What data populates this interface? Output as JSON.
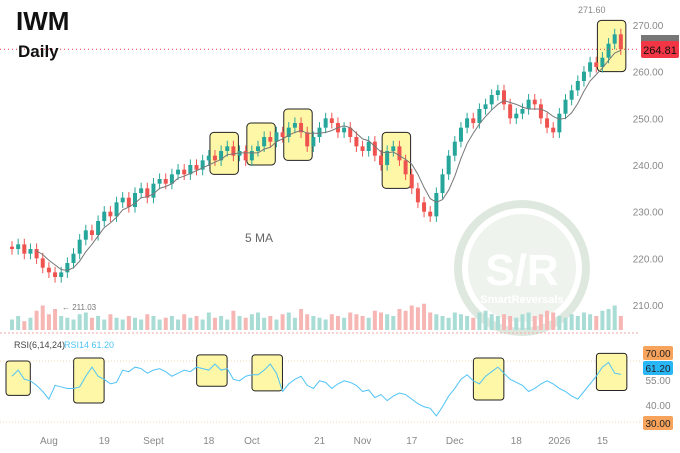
{
  "header": {
    "ticker": "IWM",
    "interval": "Daily"
  },
  "chart_data": [
    {
      "type": "candlestick",
      "title": "IWM Daily",
      "ylim": [
        205,
        275
      ],
      "y_ticks": [
        210,
        220,
        230,
        240,
        250,
        260,
        270
      ],
      "last_price": "264.81",
      "high_label": "271.60",
      "low_label": "211.03",
      "ma_label": "5 MA",
      "closes": [
        222,
        223,
        221,
        222,
        220,
        218,
        217,
        216,
        217,
        219,
        221,
        224,
        226,
        225,
        228,
        230,
        229,
        232,
        233,
        231,
        234,
        235,
        233,
        236,
        237,
        236,
        238,
        239,
        238,
        240,
        239,
        241,
        242,
        241,
        243,
        244,
        242,
        243,
        241,
        243,
        244,
        246,
        245,
        247,
        246,
        248,
        249,
        247,
        244,
        246,
        248,
        250,
        249,
        247,
        248,
        246,
        244,
        243,
        245,
        242,
        240,
        243,
        244,
        241,
        238,
        235,
        232,
        230,
        229,
        234,
        238,
        242,
        245,
        248,
        250,
        249,
        252,
        253,
        255,
        256,
        253,
        250,
        251,
        252,
        254,
        253,
        250,
        248,
        247,
        251,
        254,
        256,
        258,
        260,
        262,
        261,
        263,
        266,
        268,
        264.81
      ],
      "volume": [
        30,
        40,
        25,
        35,
        55,
        70,
        45,
        60,
        40,
        35,
        30,
        45,
        50,
        35,
        40,
        30,
        45,
        35,
        30,
        40,
        35,
        30,
        45,
        40,
        30,
        35,
        40,
        30,
        45,
        35,
        40,
        30,
        50,
        35,
        40,
        30,
        55,
        40,
        35,
        45,
        50,
        35,
        40,
        30,
        45,
        50,
        35,
        60,
        45,
        40,
        35,
        30,
        45,
        40,
        35,
        50,
        45,
        40,
        35,
        55,
        50,
        45,
        40,
        60,
        55,
        70,
        65,
        75,
        50,
        45,
        40,
        35,
        50,
        45,
        40,
        35,
        50,
        55,
        45,
        40,
        45,
        40,
        35,
        45,
        50,
        40,
        45,
        55,
        50,
        40,
        35,
        45,
        40,
        50,
        45,
        40,
        55,
        60,
        70,
        40
      ],
      "highlights": [
        [
          33,
          36
        ],
        [
          39,
          42
        ],
        [
          45,
          48
        ],
        [
          61,
          64
        ],
        [
          96,
          99
        ]
      ]
    },
    {
      "type": "line",
      "title": "RSI(6,14,24)",
      "series_label": "RSI14 61.20",
      "ylim": [
        28,
        75
      ],
      "levels": [
        "70.00",
        "30.00"
      ],
      "y_ticks": [
        "55.00",
        "40.00"
      ],
      "last_value": "61.20",
      "values": [
        60,
        64,
        58,
        57,
        54,
        50,
        45,
        54,
        53,
        52,
        52,
        53,
        60,
        66,
        60,
        58,
        55,
        56,
        64,
        63,
        66,
        65,
        62,
        64,
        65,
        63,
        60,
        62,
        64,
        63,
        66,
        65,
        64,
        68,
        64,
        65,
        58,
        57,
        60,
        61,
        61,
        64,
        68,
        62,
        50,
        55,
        58,
        60,
        54,
        52,
        57,
        56,
        52,
        55,
        57,
        56,
        54,
        50,
        51,
        46,
        48,
        44,
        47,
        49,
        48,
        45,
        42,
        40,
        39,
        34,
        40,
        47,
        52,
        58,
        61,
        57,
        55,
        60,
        63,
        66,
        62,
        58,
        56,
        54,
        50,
        52,
        55,
        57,
        55,
        52,
        50,
        47,
        45,
        50,
        55,
        60,
        66,
        69,
        62,
        61.2
      ],
      "highlights": [
        [
          0,
          2
        ],
        [
          11,
          14
        ],
        [
          31,
          34
        ],
        [
          40,
          43
        ],
        [
          76,
          79
        ],
        [
          96,
          99
        ]
      ]
    }
  ],
  "x_axis": [
    {
      "label": "Aug",
      "i": 6
    },
    {
      "label": "19",
      "i": 15
    },
    {
      "label": "Sept",
      "i": 23
    },
    {
      "label": "18",
      "i": 32
    },
    {
      "label": "Oct",
      "i": 39
    },
    {
      "label": "21",
      "i": 50
    },
    {
      "label": "Nov",
      "i": 57
    },
    {
      "label": "17",
      "i": 65
    },
    {
      "label": "Dec",
      "i": 72
    },
    {
      "label": "18",
      "i": 82
    },
    {
      "label": "2026",
      "i": 89
    },
    {
      "label": "15",
      "i": 96
    }
  ],
  "watermark": {
    "logo": "S/R",
    "name": "SmartReversals"
  },
  "colors": {
    "up": "#26a69a",
    "down": "#ef5350",
    "rsi": "#4fc3f7",
    "hl": "#fff7a8"
  }
}
